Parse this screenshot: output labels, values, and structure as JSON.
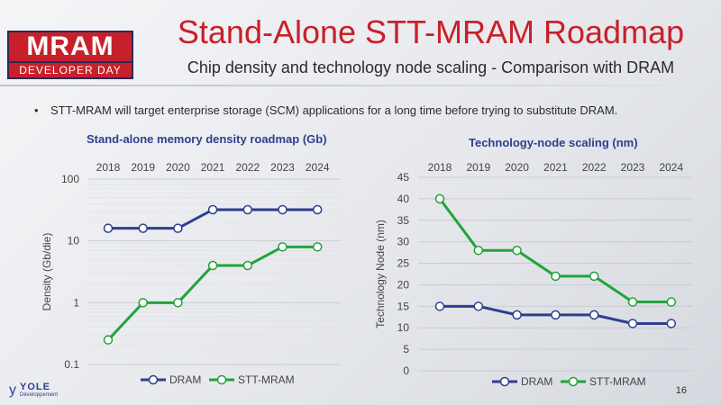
{
  "logo": {
    "top": "MRAM",
    "bottom": "DEVELOPER DAY"
  },
  "header": {
    "title": "Stand-Alone STT-MRAM Roadmap",
    "subtitle": "Chip density and technology node scaling - Comparison with DRAM"
  },
  "bullet": "STT-MRAM will target enterprise storage (SCM) applications for a long time before trying to substitute DRAM.",
  "footer": {
    "brand": "YOLE",
    "brand_sub": "Développement",
    "page": "16"
  },
  "colors": {
    "dram": "#2e3f8f",
    "stt": "#22a33a",
    "title": "#c8202a"
  },
  "chart_data": [
    {
      "type": "line",
      "title": "Stand-alone memory density roadmap (Gb)",
      "ylabel": "Density (Gb/die)",
      "yscale": "log",
      "ylim": [
        0.1,
        100
      ],
      "yticks": [
        "0.1",
        "1",
        "10",
        "100"
      ],
      "categories": [
        "2018",
        "2019",
        "2020",
        "2021",
        "2022",
        "2023",
        "2024"
      ],
      "series": [
        {
          "name": "DRAM",
          "values": [
            16,
            16,
            16,
            32,
            32,
            32,
            32
          ]
        },
        {
          "name": "STT-MRAM",
          "values": [
            0.25,
            1,
            1,
            4,
            4,
            8,
            8
          ]
        }
      ],
      "legend": "bottom",
      "grid": true
    },
    {
      "type": "line",
      "title": "Technology-node scaling (nm)",
      "ylabel": "Technology Node (nm)",
      "yscale": "linear",
      "ylim": [
        0,
        45
      ],
      "yticks": [
        "0",
        "5",
        "10",
        "15",
        "20",
        "25",
        "30",
        "35",
        "40",
        "45"
      ],
      "categories": [
        "2018",
        "2019",
        "2020",
        "2021",
        "2022",
        "2023",
        "2024"
      ],
      "series": [
        {
          "name": "DRAM",
          "values": [
            15,
            15,
            13,
            13,
            13,
            11,
            11
          ]
        },
        {
          "name": "STT-MRAM",
          "values": [
            40,
            28,
            28,
            22,
            22,
            16,
            16
          ]
        }
      ],
      "legend": "bottom",
      "grid": true
    }
  ]
}
